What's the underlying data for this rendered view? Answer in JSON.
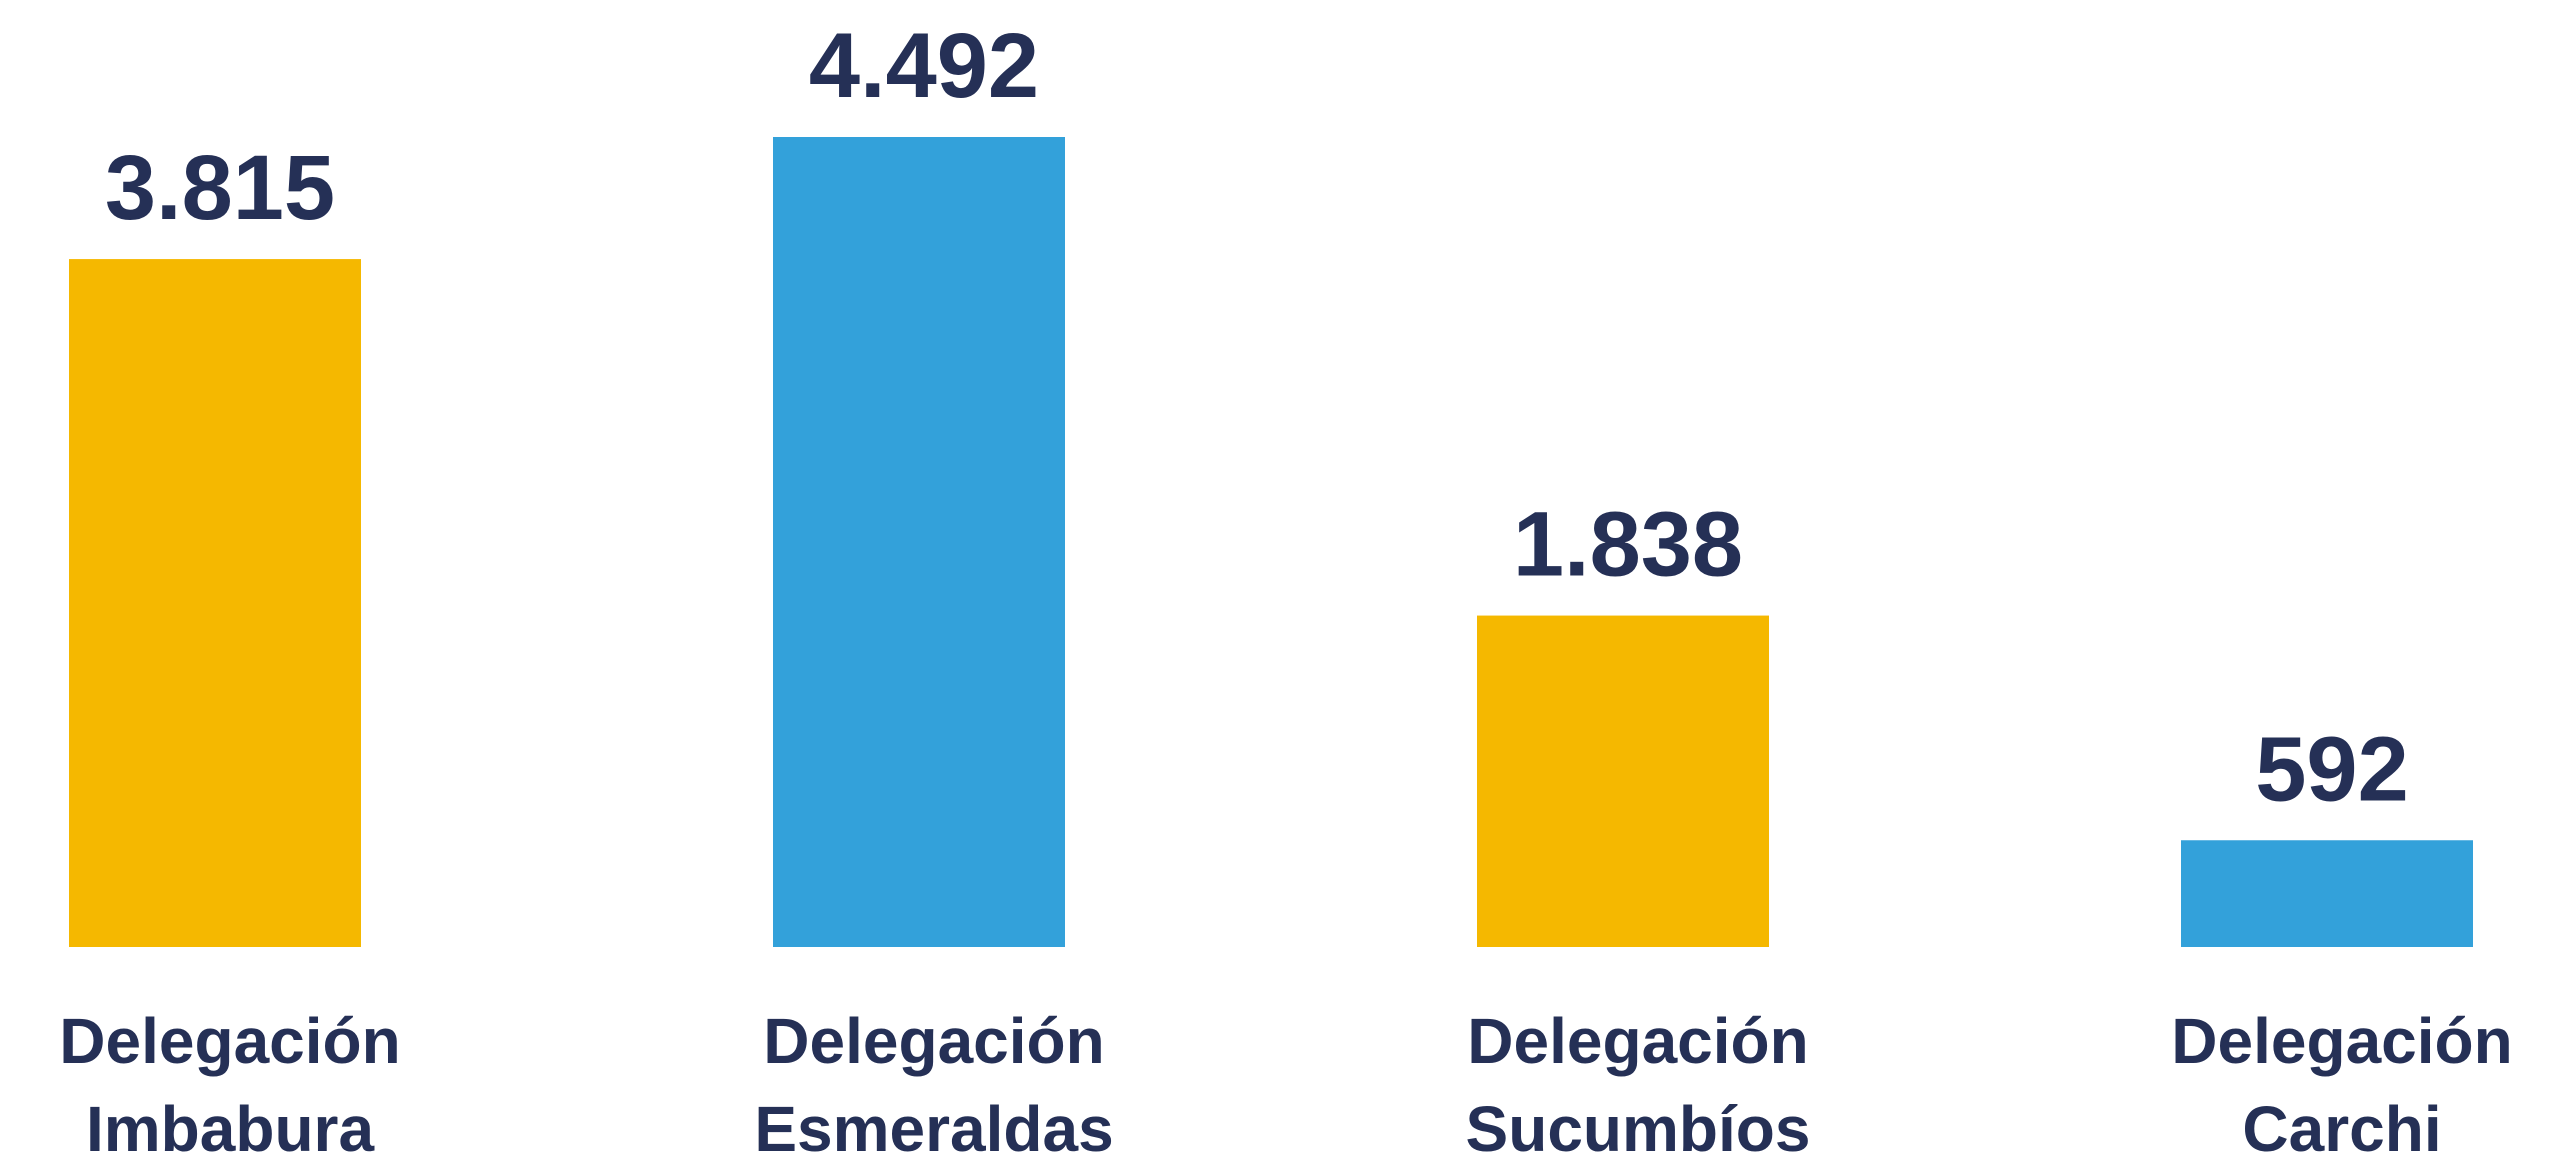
{
  "chart_data": {
    "type": "bar",
    "categories": [
      "Delegación Imbabura",
      "Delegación Esmeraldas",
      "Delegación Sucumbíos",
      "Delegación Carchi"
    ],
    "values": [
      3815,
      4492,
      1838,
      592
    ],
    "value_labels": [
      "3.815",
      "4.492",
      "1.838",
      "592"
    ],
    "colors": [
      "#f5b800",
      "#33a1da",
      "#f5b800",
      "#33a1da"
    ]
  }
}
